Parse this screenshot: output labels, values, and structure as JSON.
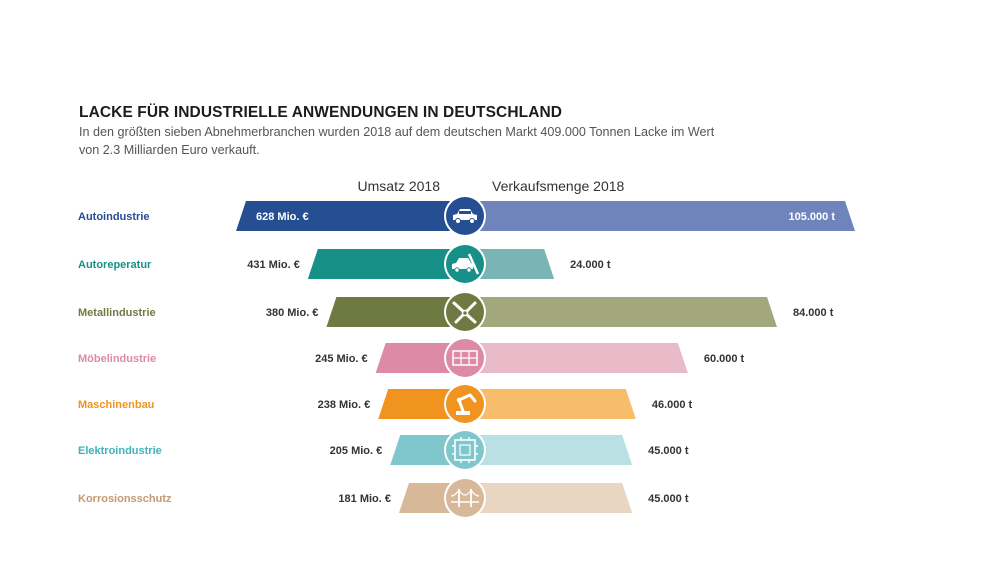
{
  "title": "LACKE FÜR INDUSTRIELLE ANWENDUNGEN IN DEUTSCHLAND",
  "subtitle": "In den größten sieben Abnehmerbranchen wurden 2018 auf dem deutschen Markt 409.000 Tonnen Lacke im Wert von 2.3 Milliarden Euro verkauft.",
  "chart_data": {
    "type": "bar",
    "orientation": "horizontal-butterfly",
    "title": "LACKE FÜR INDUSTRIELLE ANWENDUNGEN IN DEUTSCHLAND",
    "categories": [
      "Autoindustrie",
      "Autoreperatur",
      "Metallindustrie",
      "Möbelindustrie",
      "Maschinenbau",
      "Elektroindustrie",
      "Korrosionsschutz"
    ],
    "series": [
      {
        "name": "Umsatz 2018",
        "side": "left",
        "values": [
          628,
          431,
          380,
          245,
          238,
          205,
          181
        ],
        "labels": [
          "628 Mio. €",
          "431 Mio. €",
          "380 Mio. €",
          "245 Mio. €",
          "238 Mio. €",
          "205 Mio. €",
          "181 Mio. €"
        ]
      },
      {
        "name": "Verkaufsmenge 2018",
        "side": "right",
        "values": [
          105000,
          24000,
          84000,
          60000,
          46000,
          45000,
          45000
        ],
        "labels": [
          "105.000 t",
          "24.000 t",
          "84.000 t",
          "60.000 t",
          "46.000 t",
          "45.000 t",
          "45.000 t"
        ]
      }
    ],
    "colors": {
      "left": [
        "#264e92",
        "#179188",
        "#6f7a42",
        "#dc8aa6",
        "#f0941f",
        "#80c7cd",
        "#d7b99a"
      ],
      "right": [
        "#6e84bb",
        "#7ab5b5",
        "#a3a77c",
        "#e9bac8",
        "#f7bd6b",
        "#b9e1e4",
        "#e8d6c2"
      ],
      "category_text": [
        "#264e92",
        "#179188",
        "#6f7a42",
        "#dc8aa6",
        "#f0941f",
        "#3fb3bb",
        "#c49a73"
      ]
    },
    "icons": [
      "car-icon",
      "car-repair-icon",
      "pliers-icon",
      "furniture-icon",
      "robot-arm-icon",
      "circuit-chip-icon",
      "bridge-icon"
    ]
  }
}
